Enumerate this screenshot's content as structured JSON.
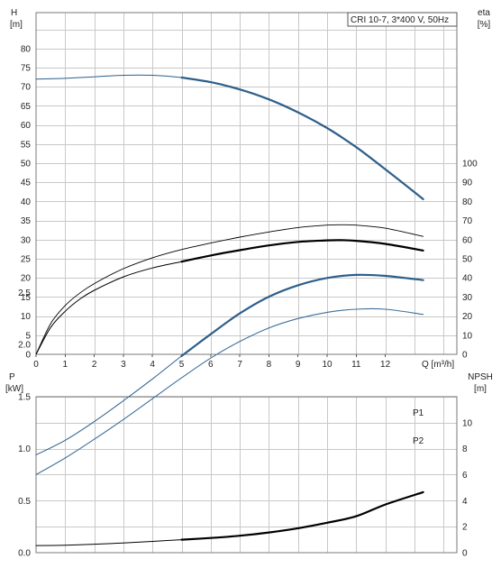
{
  "legend_text": "CRI 10-7, 3*400 V, 50Hz",
  "colors": {
    "bold_blue": "#2d5f8b",
    "thin_blue": "#3f6f99",
    "black": "#000000",
    "grid": "#c8c8c8"
  },
  "chart_data": [
    {
      "type": "line",
      "panel": "head_efficiency",
      "xlabel": "Q [m³/h]",
      "xlim": [
        0,
        14
      ],
      "x_ticks": [
        "0",
        "1",
        "2",
        "3",
        "4",
        "5",
        "6",
        "7",
        "8",
        "9",
        "10",
        "11",
        "12"
      ],
      "left_axis": {
        "label_line1": "H",
        "label_line2": "[m]",
        "lim": [
          0,
          85
        ],
        "ticks": [
          "0",
          "5",
          "10",
          "15",
          "20",
          "25",
          "30",
          "35",
          "40",
          "45",
          "50",
          "55",
          "60",
          "65",
          "70",
          "75",
          "80"
        ]
      },
      "right_axis": {
        "label_line1": "eta",
        "label_line2": "[%]",
        "lim": [
          0,
          100
        ],
        "ticks": [
          "0",
          "10",
          "20",
          "30",
          "40",
          "50",
          "60",
          "70",
          "80",
          "90",
          "100"
        ]
      },
      "grid": true,
      "series": [
        {
          "axis": "left",
          "style": "bold_blue",
          "x": [
            0,
            1,
            2,
            3,
            4,
            5,
            6,
            7,
            8,
            9,
            10,
            11,
            12,
            13.3
          ],
          "y": [
            72,
            72.2,
            72.6,
            73,
            73,
            72.4,
            71.2,
            69.3,
            66.7,
            63.3,
            59.2,
            54.2,
            48.4,
            40.6
          ]
        },
        {
          "axis": "right",
          "style": "thin_black",
          "x": [
            0,
            0.5,
            1,
            1.5,
            2,
            3,
            4,
            5,
            6,
            7,
            8,
            9,
            10,
            10.5,
            11,
            12,
            13.3
          ],
          "y": [
            0,
            16,
            25.5,
            32,
            37,
            44.8,
            50.5,
            54.8,
            58.2,
            61.3,
            64,
            66.3,
            67.6,
            67.8,
            67.6,
            66,
            61.7
          ]
        },
        {
          "axis": "right",
          "style": "bold_black",
          "x": [
            0,
            0.5,
            1,
            1.5,
            2,
            3,
            4,
            5,
            6,
            7,
            8,
            9,
            10,
            10.5,
            11,
            12,
            13.3
          ],
          "y": [
            0,
            14,
            22.5,
            28.8,
            33.5,
            40.5,
            45.2,
            48.5,
            51.7,
            54.5,
            57,
            58.8,
            59.6,
            59.7,
            59.4,
            57.8,
            54.3
          ]
        }
      ]
    },
    {
      "type": "line",
      "panel": "power_npsh",
      "xlim": [
        0,
        14
      ],
      "left_axis": {
        "label_line1": "P",
        "label_line2": "[kW]",
        "lim": [
          0,
          3.0
        ],
        "ticks": [
          "0.0",
          "0.5",
          "1.0",
          "1.5",
          "2.0",
          "2.5"
        ]
      },
      "right_axis": {
        "label_line1": "NPSH",
        "label_line2": "[m]",
        "lim": [
          0,
          12
        ],
        "ticks": [
          "0",
          "2",
          "4",
          "6",
          "8",
          "10"
        ]
      },
      "grid": true,
      "series": [
        {
          "name": "P1",
          "axis": "left",
          "style": "bold_blue",
          "x": [
            0,
            1,
            2,
            3,
            4,
            5,
            6,
            7,
            8,
            9,
            10,
            11,
            12,
            13.3
          ],
          "y": [
            0.94,
            1.08,
            1.26,
            1.46,
            1.67,
            1.89,
            2.1,
            2.3,
            2.46,
            2.57,
            2.64,
            2.67,
            2.66,
            2.62
          ]
        },
        {
          "name": "P2",
          "axis": "left",
          "style": "thin_blue",
          "x": [
            0,
            1,
            2,
            3,
            4,
            5,
            6,
            7,
            8,
            9,
            10,
            11,
            12,
            13.3
          ],
          "y": [
            0.75,
            0.91,
            1.09,
            1.28,
            1.48,
            1.68,
            1.87,
            2.03,
            2.16,
            2.25,
            2.31,
            2.34,
            2.34,
            2.29
          ]
        },
        {
          "axis": "right",
          "style": "bold_black",
          "x": [
            0,
            1,
            2,
            3,
            4,
            5,
            6,
            7,
            8,
            9,
            10,
            11,
            12,
            13.3
          ],
          "y": [
            0.55,
            0.57,
            0.65,
            0.75,
            0.87,
            1.0,
            1.13,
            1.3,
            1.55,
            1.88,
            2.3,
            2.8,
            3.7,
            4.65
          ]
        }
      ]
    }
  ]
}
